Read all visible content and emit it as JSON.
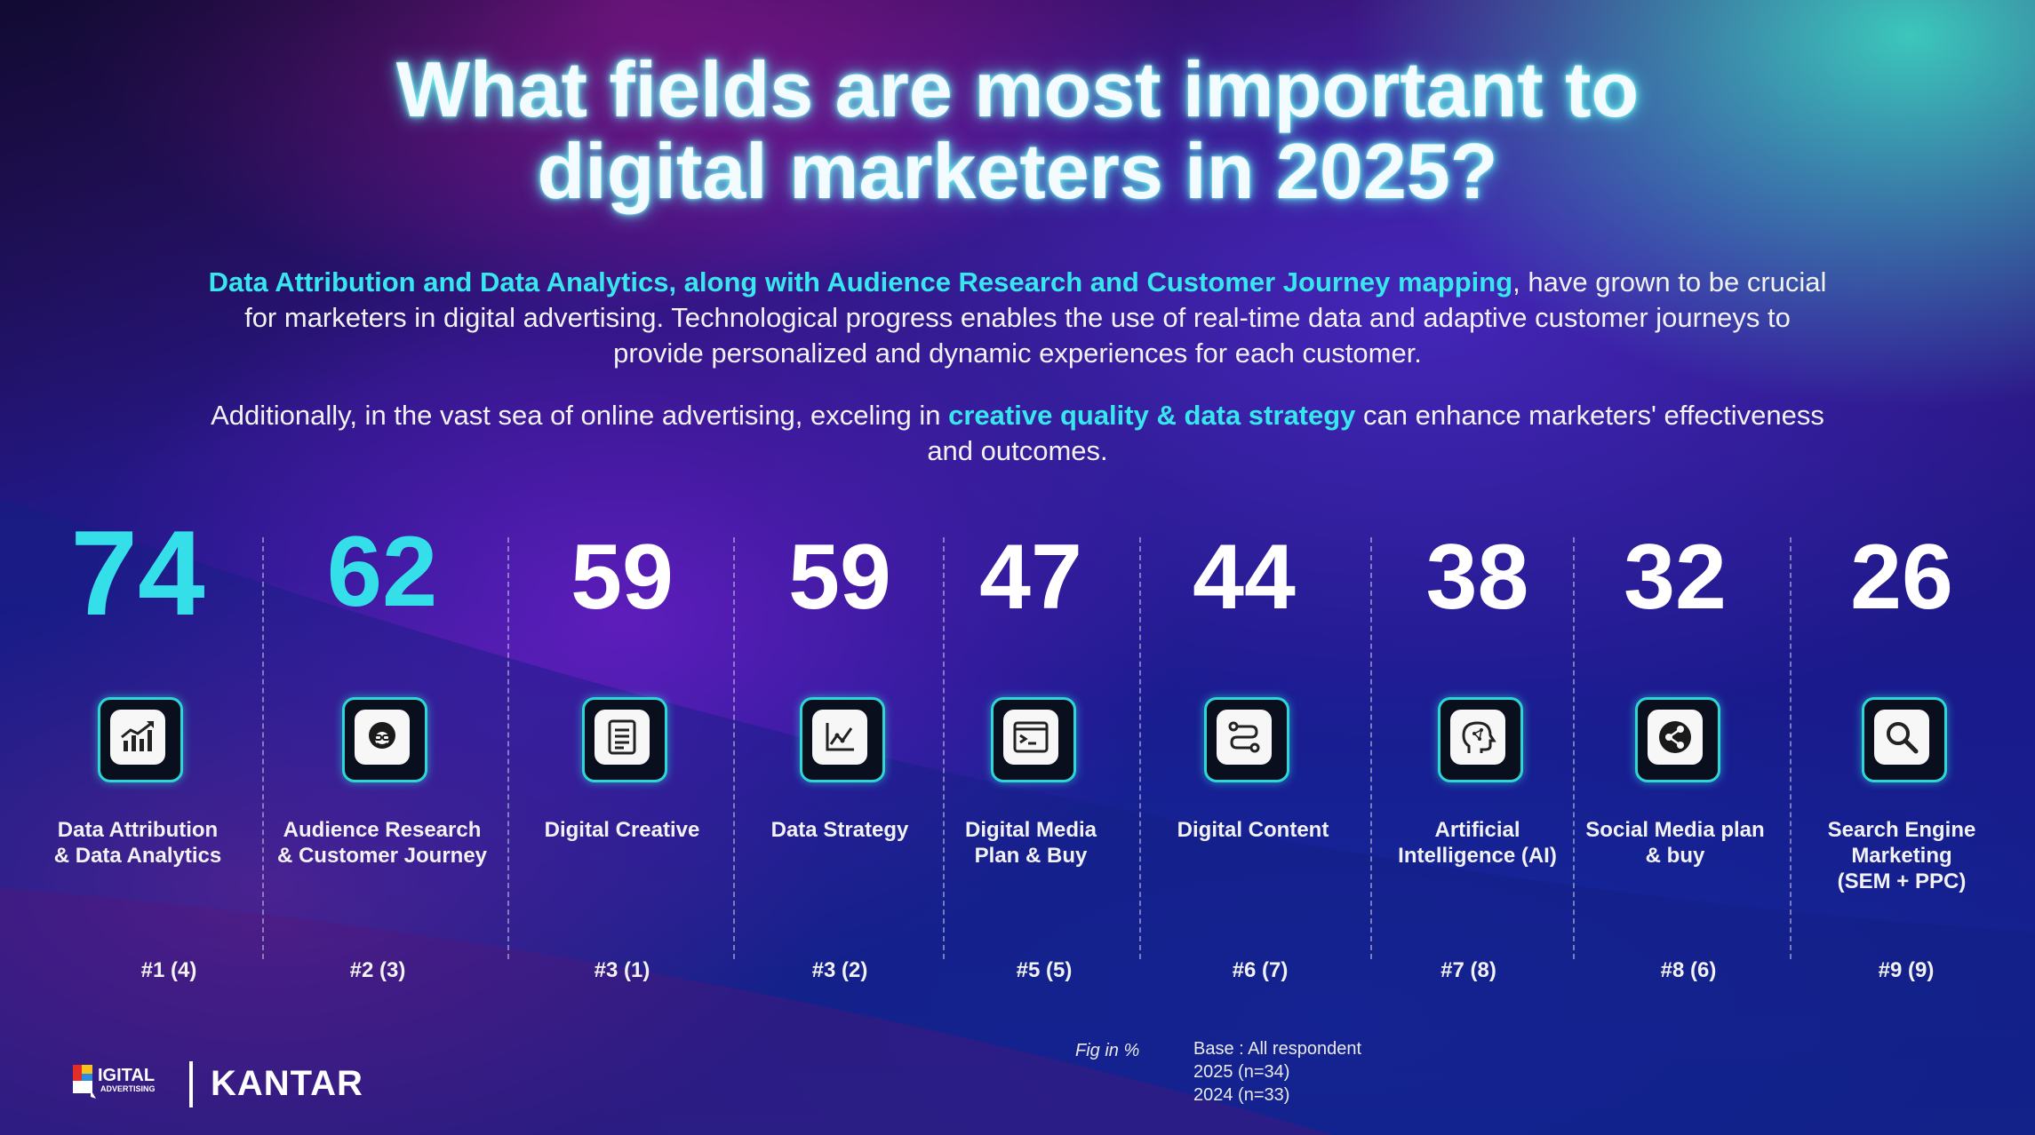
{
  "title": {
    "line1": "What fields are most important to",
    "line2": "digital marketers in 2025?"
  },
  "paragraph1": {
    "highlight": "Data Attribution and Data Analytics, along with Audience Research and Customer Journey mapping",
    "rest": ", have grown to be crucial for marketers in digital advertising. Technological progress enables the use of real-time data and adaptive customer journeys to provide personalized and dynamic experiences for each customer."
  },
  "paragraph2": {
    "before": "Additionally, in the vast sea of online advertising, exceling in ",
    "highlight": "creative quality & data strategy",
    "after": " can enhance marketers' effectiveness and outcomes."
  },
  "fields": [
    {
      "value": "74",
      "label_line1": "Data Attribution",
      "label_line2": "& Data Analytics",
      "label_line3": "",
      "rank": "#1 (4)",
      "icon": "bar-chart-growth-icon"
    },
    {
      "value": "62",
      "label_line1": "Audience Research",
      "label_line2": "& Customer Journey",
      "label_line3": "",
      "rank": "#2 (3)",
      "icon": "audience-person-icon"
    },
    {
      "value": "59",
      "label_line1": "Digital Creative",
      "label_line2": "",
      "label_line3": "",
      "rank": "#3 (1)",
      "icon": "document-icon"
    },
    {
      "value": "59",
      "label_line1": "Data Strategy",
      "label_line2": "",
      "label_line3": "",
      "rank": "#3 (2)",
      "icon": "line-chart-icon"
    },
    {
      "value": "47",
      "label_line1": "Digital Media",
      "label_line2": "Plan & Buy",
      "label_line3": "",
      "rank": "#5 (5)",
      "icon": "browser-window-icon"
    },
    {
      "value": "44",
      "label_line1": "Digital Content",
      "label_line2": "",
      "label_line3": "",
      "rank": "#6 (7)",
      "icon": "path-route-icon"
    },
    {
      "value": "38",
      "label_line1": "Artificial",
      "label_line2": "Intelligence (AI)",
      "label_line3": "",
      "rank": "#7 (8)",
      "icon": "ai-brain-head-icon"
    },
    {
      "value": "32",
      "label_line1": "Social Media plan",
      "label_line2": "& buy",
      "label_line3": "",
      "rank": "#8 (6)",
      "icon": "share-icon"
    },
    {
      "value": "26",
      "label_line1": "Search Engine",
      "label_line2": "Marketing",
      "label_line3": "(SEM + PPC)",
      "rank": "#9 (9)",
      "icon": "magnifier-icon"
    }
  ],
  "footer": {
    "fig_note": "Fig in %",
    "base_line1": "Base : All respondent",
    "base_line2": "2025 (n=34)",
    "base_line3": "2024 (n=33)",
    "logo_da_text": "IGITAL",
    "logo_da_sub": "ADVERTISING",
    "logo_kantar": "KANTAR"
  },
  "colors": {
    "highlight": "#38e6ef",
    "icon_border": "#2fd6d6"
  }
}
